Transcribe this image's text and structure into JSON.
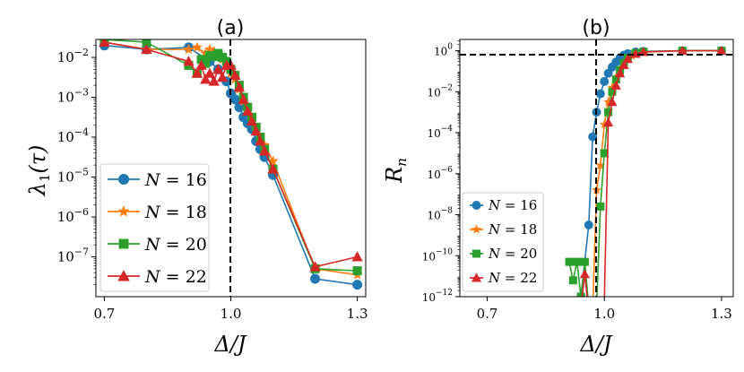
{
  "chart_data": [
    {
      "panel": "(a)",
      "type": "line",
      "title": "(a)",
      "xlabel": "Δ/J",
      "ylabel": "λ1(τ)",
      "xlim": [
        0.68,
        1.32
      ],
      "ylim_log10": [
        -8,
        -1.55
      ],
      "yscale": "log",
      "x_ticks": [
        0.7,
        1.0,
        1.3
      ],
      "x_tick_labels": [
        "0.7",
        "1.0",
        "1.3"
      ],
      "y_ticks_log10": [
        -7,
        -6,
        -5,
        -4,
        -3,
        -2
      ],
      "y_tick_bases": [
        "10",
        "10",
        "10",
        "10",
        "10",
        "10"
      ],
      "y_tick_exps": [
        "−7",
        "−6",
        "−5",
        "−4",
        "−3",
        "−2"
      ],
      "vline_x": 1.0,
      "legend_position": "lower-left",
      "series": [
        {
          "name": "N = 16",
          "legend_var": "N",
          "legend_val": "= 16",
          "color": "#1f77b4",
          "marker": "circle",
          "x": [
            0.7,
            0.8,
            0.9,
            0.95,
            0.97,
            0.99,
            1.0,
            1.01,
            1.02,
            1.03,
            1.04,
            1.05,
            1.06,
            1.07,
            1.08,
            1.1,
            1.2,
            1.3
          ],
          "log10_y": [
            -1.7,
            -1.8,
            -1.75,
            -2.1,
            -2.3,
            -2.6,
            -2.9,
            -3.05,
            -3.25,
            -3.5,
            -3.65,
            -3.8,
            -4.1,
            -4.3,
            -4.5,
            -4.95,
            -7.55,
            -7.7
          ]
        },
        {
          "name": "N = 18",
          "legend_var": "N",
          "legend_val": "= 18",
          "color": "#ff7f0e",
          "marker": "star",
          "x": [
            0.7,
            0.8,
            0.9,
            0.92,
            0.94,
            0.95,
            0.96,
            0.97,
            0.98,
            0.99,
            1.0,
            1.01,
            1.02,
            1.03,
            1.04,
            1.05,
            1.06,
            1.08,
            1.1,
            1.2,
            1.3
          ],
          "log10_y": [
            -1.62,
            -1.8,
            -1.8,
            -1.75,
            -1.9,
            -1.8,
            -1.85,
            -1.95,
            -2.05,
            -2.2,
            -2.4,
            -2.55,
            -2.8,
            -3.1,
            -3.3,
            -3.55,
            -3.8,
            -4.2,
            -4.6,
            -7.3,
            -7.45
          ]
        },
        {
          "name": "N = 20",
          "legend_var": "N",
          "legend_val": "= 20",
          "color": "#2ca02c",
          "marker": "square",
          "x": [
            0.7,
            0.8,
            0.9,
            0.92,
            0.93,
            0.94,
            0.95,
            0.96,
            0.97,
            0.98,
            0.99,
            1.0,
            1.01,
            1.02,
            1.03,
            1.04,
            1.05,
            1.06,
            1.07,
            1.08,
            1.1,
            1.2,
            1.3
          ],
          "log10_y": [
            -1.55,
            -1.62,
            -2.2,
            -2.4,
            -2.05,
            -2.15,
            -1.95,
            -1.98,
            -1.9,
            -2.0,
            -2.1,
            -2.3,
            -2.45,
            -2.7,
            -3.0,
            -3.25,
            -3.5,
            -3.75,
            -4.0,
            -4.3,
            -4.8,
            -7.3,
            -7.35
          ]
        },
        {
          "name": "N = 22",
          "legend_var": "N",
          "legend_val": "= 22",
          "color": "#d62728",
          "marker": "triangle",
          "x": [
            0.7,
            0.8,
            0.9,
            0.92,
            0.93,
            0.94,
            0.95,
            0.96,
            0.97,
            0.98,
            0.99,
            1.0,
            1.01,
            1.02,
            1.03,
            1.04,
            1.05,
            1.06,
            1.07,
            1.08,
            1.1,
            1.2,
            1.3
          ],
          "log10_y": [
            -1.62,
            -1.8,
            -2.1,
            -2.4,
            -2.2,
            -2.55,
            -2.4,
            -2.6,
            -2.3,
            -2.5,
            -2.2,
            -2.2,
            -2.45,
            -2.75,
            -3.05,
            -3.35,
            -3.6,
            -3.85,
            -4.1,
            -4.35,
            -4.8,
            -7.25,
            -7.0
          ]
        }
      ]
    },
    {
      "panel": "(b)",
      "type": "line",
      "title": "(b)",
      "xlabel": "Δ/J",
      "ylabel": "Rn",
      "xlim": [
        0.63,
        1.33
      ],
      "ylim_log10": [
        -12,
        0.55
      ],
      "yscale": "log",
      "x_ticks": [
        0.7,
        1.0,
        1.3
      ],
      "x_tick_labels": [
        "0.7",
        "1.0",
        "1.3"
      ],
      "y_ticks_log10": [
        -12,
        -10,
        -8,
        -6,
        -4,
        -2,
        0
      ],
      "y_tick_bases": [
        "10",
        "10",
        "10",
        "10",
        "10",
        "10",
        "10"
      ],
      "y_tick_exps": [
        "−12",
        "−10",
        "−8",
        "−6",
        "−4",
        "−2",
        "0"
      ],
      "vline_x": 1.0,
      "hline_log10_y": 0,
      "legend_position": "lower-left",
      "series": [
        {
          "name": "N = 16",
          "legend_var": "N",
          "legend_val": "= 16",
          "color": "#1f77b4",
          "marker": "circle",
          "x": [
            0.92,
            0.94,
            0.96,
            0.97,
            0.98,
            0.99,
            1.0,
            1.01,
            1.02,
            1.03,
            1.04,
            1.05,
            1.06,
            1.08,
            1.1,
            1.2,
            1.3
          ],
          "log10_y": [
            -12.8,
            -12.0,
            -8.5,
            -4.2,
            -3.0,
            -2.1,
            -1.5,
            -1.1,
            -0.8,
            -0.55,
            -0.35,
            -0.22,
            -0.14,
            -0.06,
            -0.03,
            0.0,
            0.0
          ]
        },
        {
          "name": "N = 18",
          "legend_var": "N",
          "legend_val": "= 18",
          "color": "#ff7f0e",
          "marker": "star",
          "x": [
            0.97,
            0.98,
            0.99,
            1.0,
            1.01,
            1.02,
            1.03,
            1.04,
            1.05,
            1.06,
            1.07,
            1.08,
            1.1,
            1.2,
            1.3
          ],
          "log10_y": [
            -12.8,
            -6.8,
            -5.6,
            -3.6,
            -2.5,
            -1.8,
            -1.3,
            -0.9,
            -0.6,
            -0.4,
            -0.25,
            -0.15,
            -0.07,
            0.0,
            0.0
          ]
        },
        {
          "name": "N = 20",
          "legend_var": "N",
          "legend_val": "= 20",
          "color": "#2ca02c",
          "marker": "square",
          "x": [
            0.91,
            0.92,
            0.93,
            0.94,
            0.95,
            0.96,
            0.97,
            0.98,
            0.99,
            1.0,
            1.01,
            1.02,
            1.03,
            1.04,
            1.05,
            1.06,
            1.08,
            1.1,
            1.2,
            1.3
          ],
          "log10_y": [
            -10.3,
            -11.2,
            -10.3,
            -12.0,
            -10.3,
            -12.5,
            -12.8,
            -12.5,
            -7.6,
            -5.0,
            -3.0,
            -2.0,
            -1.4,
            -0.95,
            -0.6,
            -0.35,
            -0.12,
            -0.05,
            0.0,
            0.0
          ]
        },
        {
          "name": "N = 22",
          "legend_var": "N",
          "legend_val": "= 22",
          "color": "#d62728",
          "marker": "triangle",
          "x": [
            0.93,
            0.94,
            0.95,
            0.96,
            0.97,
            0.98,
            1.0,
            1.01,
            1.02,
            1.03,
            1.04,
            1.05,
            1.06,
            1.08,
            1.1,
            1.2,
            1.3
          ],
          "log10_y": [
            -12.8,
            -12.5,
            -10.9,
            -12.8,
            -12.5,
            -12.8,
            -12.2,
            -3.5,
            -2.5,
            -1.7,
            -1.1,
            -0.7,
            -0.4,
            -0.15,
            -0.06,
            0.0,
            0.0
          ]
        }
      ]
    }
  ]
}
